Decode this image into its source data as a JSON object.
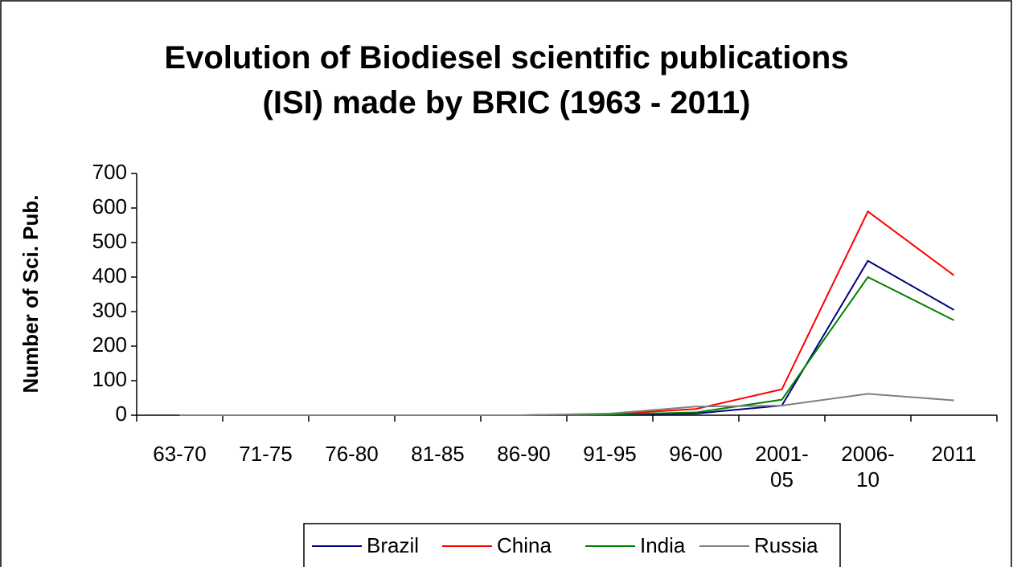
{
  "chart_data": {
    "type": "line",
    "title": "Evolution of Biodiesel scientific publications (ISI) made by BRIC (1963 - 2011)",
    "y_label": "Number of Sci. Pub.",
    "categories": [
      "63-70",
      "71-75",
      "76-80",
      "81-85",
      "86-90",
      "91-95",
      "96-00",
      "2001-05",
      "2006-10",
      "2011"
    ],
    "series": [
      {
        "name": "Brazil",
        "color": "#000080",
        "values": [
          0,
          0,
          0,
          0,
          0,
          2,
          5,
          28,
          447,
          305
        ]
      },
      {
        "name": "China",
        "color": "#ff0000",
        "values": [
          0,
          0,
          0,
          0,
          0,
          3,
          18,
          75,
          590,
          405
        ]
      },
      {
        "name": "India",
        "color": "#008000",
        "values": [
          0,
          0,
          0,
          0,
          0,
          2,
          8,
          45,
          400,
          275
        ]
      },
      {
        "name": "Russia",
        "color": "#808080",
        "values": [
          0,
          0,
          0,
          0,
          0,
          5,
          25,
          28,
          62,
          43
        ]
      }
    ],
    "ylim": [
      0,
      700
    ],
    "yticks": [
      0,
      100,
      200,
      300,
      400,
      500,
      600,
      700
    ],
    "legend": "bottom"
  }
}
